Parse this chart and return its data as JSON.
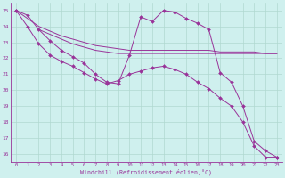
{
  "background_color": "#cff0ee",
  "grid_color": "#b0d8d0",
  "line_color": "#993399",
  "marker": "D",
  "marker_size": 2,
  "xlim": [
    -0.5,
    23.5
  ],
  "ylim": [
    15.5,
    25.5
  ],
  "xticks": [
    0,
    1,
    2,
    3,
    4,
    5,
    6,
    7,
    8,
    9,
    10,
    11,
    12,
    13,
    14,
    15,
    16,
    17,
    18,
    19,
    20,
    21,
    22,
    23
  ],
  "yticks": [
    16,
    17,
    18,
    19,
    20,
    21,
    22,
    23,
    24,
    25
  ],
  "xlabel": "Windchill (Refroidissement éolien,°C)",
  "series": [
    {
      "x": [
        0,
        1,
        2,
        3,
        4,
        5,
        6,
        7,
        8,
        9,
        10,
        11,
        12,
        13,
        14,
        15,
        16,
        17,
        18,
        19,
        20,
        21,
        22,
        23
      ],
      "y": [
        25.0,
        24.7,
        23.8,
        23.1,
        22.5,
        22.1,
        21.7,
        21.0,
        20.5,
        20.4,
        22.2,
        24.6,
        24.3,
        25.0,
        24.9,
        24.5,
        24.2,
        23.8,
        21.1,
        20.5,
        19.0,
        16.8,
        16.2,
        15.8
      ],
      "markers": true
    },
    {
      "x": [
        0,
        1,
        2,
        3,
        4,
        5,
        6,
        7,
        8,
        9,
        10,
        11,
        12,
        13,
        14,
        15,
        16,
        17,
        18,
        19,
        20,
        21,
        22,
        23
      ],
      "y": [
        25.0,
        24.5,
        24.0,
        23.7,
        23.4,
        23.2,
        23.0,
        22.8,
        22.7,
        22.6,
        22.5,
        22.5,
        22.5,
        22.5,
        22.5,
        22.5,
        22.5,
        22.5,
        22.4,
        22.4,
        22.4,
        22.4,
        22.3,
        22.3
      ],
      "markers": false
    },
    {
      "x": [
        2,
        3,
        4,
        5,
        6,
        7,
        8,
        9,
        10,
        11,
        12,
        13,
        14,
        15,
        16,
        17,
        18,
        19,
        20,
        21,
        22,
        23
      ],
      "y": [
        23.8,
        23.5,
        23.2,
        22.9,
        22.7,
        22.5,
        22.4,
        22.3,
        22.3,
        22.3,
        22.3,
        22.3,
        22.3,
        22.3,
        22.3,
        22.3,
        22.3,
        22.3,
        22.3,
        22.3,
        22.3,
        22.3
      ],
      "markers": false
    },
    {
      "x": [
        0,
        1,
        2,
        3,
        4,
        5,
        6,
        7,
        8,
        9,
        10,
        11,
        12,
        13,
        14,
        15,
        16,
        17,
        18,
        19,
        20,
        21,
        22,
        23
      ],
      "y": [
        25.0,
        24.0,
        22.9,
        22.2,
        21.8,
        21.5,
        21.1,
        20.7,
        20.4,
        20.6,
        21.0,
        21.2,
        21.4,
        21.5,
        21.3,
        21.0,
        20.5,
        20.1,
        19.5,
        19.0,
        18.0,
        16.5,
        15.8,
        15.8
      ],
      "markers": true
    }
  ]
}
